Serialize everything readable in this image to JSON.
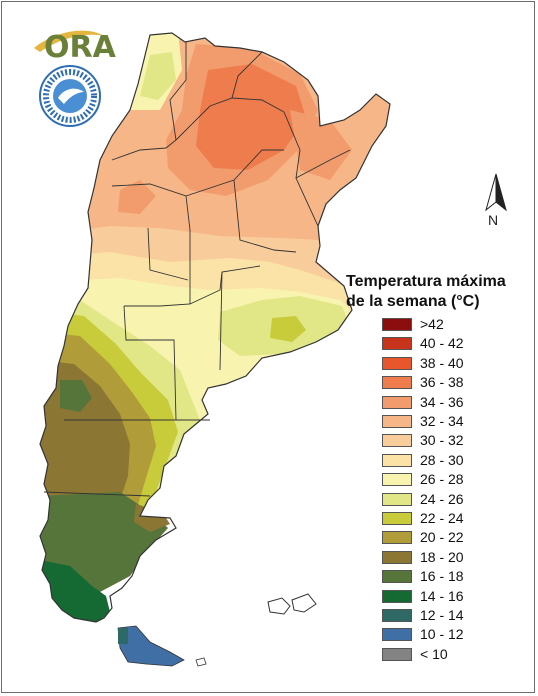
{
  "logo": {
    "text": "ORA",
    "text_color": "#6a7f38",
    "swoosh_color": "#e4b640"
  },
  "seal": {
    "ring_color": "#2f6db3",
    "center_color": "#4a8fd3"
  },
  "north": {
    "label": "N"
  },
  "legend": {
    "title_line1": "Temperatura máxima",
    "title_line2": "de la semana (°C)",
    "items": [
      {
        "label": ">42",
        "color": "#8b0d0d"
      },
      {
        "label": "40 - 42",
        "color": "#c8331c"
      },
      {
        "label": "38 - 40",
        "color": "#e8562c"
      },
      {
        "label": "36 - 38",
        "color": "#ee7c4c"
      },
      {
        "label": "34 - 36",
        "color": "#f29c6e"
      },
      {
        "label": "32 - 34",
        "color": "#f6b687"
      },
      {
        "label": "30 - 32",
        "color": "#f9cc9b"
      },
      {
        "label": "28 - 30",
        "color": "#fbe3a8"
      },
      {
        "label": "26 - 28",
        "color": "#f8f4b0"
      },
      {
        "label": "24 - 26",
        "color": "#e1e687"
      },
      {
        "label": "22 - 24",
        "color": "#c9cc3a"
      },
      {
        "label": "20 - 22",
        "color": "#b09d3a"
      },
      {
        "label": "18 - 20",
        "color": "#8c7634"
      },
      {
        "label": "16 - 18",
        "color": "#56753b"
      },
      {
        "label": "14 - 16",
        "color": "#146a32"
      },
      {
        "label": "12 - 14",
        "color": "#2f6966"
      },
      {
        "label": "10 - 12",
        "color": "#3f6fa5"
      },
      {
        "label": "< 10",
        "color": "#838383"
      }
    ]
  },
  "map": {
    "boundary_color": "#333333"
  }
}
